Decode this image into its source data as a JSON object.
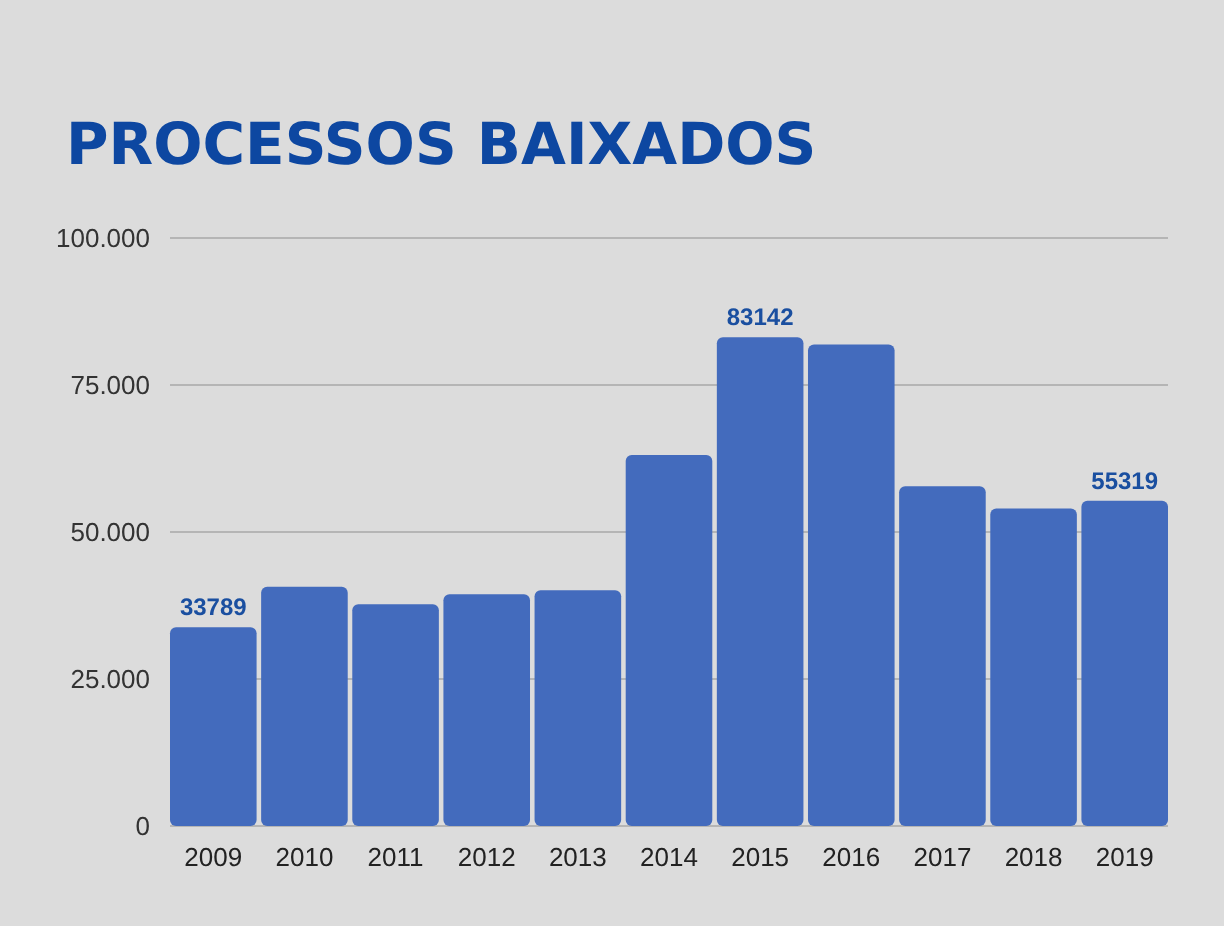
{
  "chart_data": {
    "type": "bar",
    "title": "PROCESSOS BAIXADOS",
    "categories": [
      "2009",
      "2010",
      "2011",
      "2012",
      "2013",
      "2014",
      "2015",
      "2016",
      "2017",
      "2018",
      "2019"
    ],
    "values": [
      33789,
      40700,
      37700,
      39400,
      40100,
      63100,
      83142,
      81900,
      57800,
      54000,
      55319
    ],
    "value_labels": [
      "33789",
      null,
      null,
      null,
      null,
      null,
      "83142",
      null,
      null,
      null,
      "55319"
    ],
    "color": "#436bbd",
    "ylim": [
      0,
      100000
    ],
    "yticks": [
      {
        "value": 0,
        "label": "0"
      },
      {
        "value": 25000,
        "label": "25.000"
      },
      {
        "value": 50000,
        "label": "50.000"
      },
      {
        "value": 75000,
        "label": "75.000"
      },
      {
        "value": 100000,
        "label": "100.000"
      }
    ],
    "grid": "y"
  }
}
